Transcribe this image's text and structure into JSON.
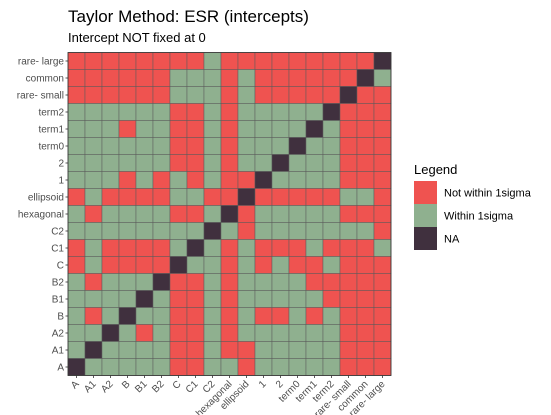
{
  "chart_data": {
    "type": "heatmap",
    "title": "Taylor Method: ESR (intercepts)",
    "subtitle": "Intercept NOT fixed at 0",
    "xlabel": "",
    "ylabel": "",
    "categories": [
      "A",
      "A1",
      "A2",
      "B",
      "B1",
      "B2",
      "C",
      "C1",
      "C2",
      "hexagonal",
      "ellipsoid",
      "1",
      "2",
      "term0",
      "term1",
      "term2",
      "rare- small",
      "common",
      "rare- large"
    ],
    "x": [
      "A",
      "A1",
      "A2",
      "B",
      "B1",
      "B2",
      "C",
      "C1",
      "C2",
      "hexagonal",
      "ellipsoid",
      "1",
      "2",
      "term0",
      "term1",
      "term2",
      "rare- small",
      "common",
      "rare- large"
    ],
    "y": [
      "A",
      "A1",
      "A2",
      "B",
      "B1",
      "B2",
      "C",
      "C1",
      "C2",
      "hexagonal",
      "ellipsoid",
      "1",
      "2",
      "term0",
      "term1",
      "term2",
      "rare- small",
      "common",
      "rare- large"
    ],
    "value_key": {
      "N": "Not within 1sigma",
      "W": "Within 1sigma",
      "X": "NA"
    },
    "matrix_rows_top_to_bottom": [
      {
        "y": "rare- large",
        "cells": "NNNNNNNNWNNNNNNNNNX"
      },
      {
        "y": "common",
        "cells": "NNNNNNWWWNWNNNNNNXW"
      },
      {
        "y": "rare- small",
        "cells": "NNNNNNWWWNWNNNNNXNN"
      },
      {
        "y": "term2",
        "cells": "WWWWWWNNWNWWWWWXNNN"
      },
      {
        "y": "term1",
        "cells": "WWWNWWNNWNWWWWXWNNN"
      },
      {
        "y": "term0",
        "cells": "WWWWWWNNWNWWWXWWNNN"
      },
      {
        "y": "2",
        "cells": "WWWWWWNNWNWWXWWWNNN"
      },
      {
        "y": "1",
        "cells": "WWWNWNWNWNNXWWWWNNN"
      },
      {
        "y": "ellipsoid",
        "cells": "NWNNNNWWNNXNNNNNWWN"
      },
      {
        "y": "hexagonal",
        "cells": "WNWWWWNNWXNWWWWWNNN"
      },
      {
        "y": "C2",
        "cells": "WWWWWWWWXWNWWWWWWWN"
      },
      {
        "y": "C1",
        "cells": "NWNNNNWXWNWNNNWNNNW"
      },
      {
        "y": "C",
        "cells": "NWNNNNXWWNWNWNNWNNN"
      },
      {
        "y": "B2",
        "cells": "WNWWWXNNWNWWWWNNNNN"
      },
      {
        "y": "B1",
        "cells": "WWWWXWNNWNWWWWWNNNN"
      },
      {
        "y": "B",
        "cells": "WNWXWWNNWNWNNWNWNNN"
      },
      {
        "y": "A2",
        "cells": "WWXWNWNNWNWWWWWWNNN"
      },
      {
        "y": "A1",
        "cells": "WXWWWWNNWNNWWWWWNNN"
      },
      {
        "y": "A",
        "cells": "XWWWWWNNWWNWWWWWNNN"
      }
    ],
    "legend": {
      "title": "Legend",
      "placement": "right",
      "entries": [
        {
          "key": "N",
          "label": "Not within 1sigma",
          "color": "#ef5350"
        },
        {
          "key": "W",
          "label": "Within 1sigma",
          "color": "#8fb08f"
        },
        {
          "key": "X",
          "label": "NA",
          "color": "#40303e"
        }
      ]
    },
    "grid": false
  },
  "colors": {
    "not_within": "#ef5350",
    "within": "#8fb08f",
    "na": "#40303e",
    "cell_border": "#5b5b5b",
    "panel_border": "#333333",
    "tick_text": "#4d4d4d"
  }
}
